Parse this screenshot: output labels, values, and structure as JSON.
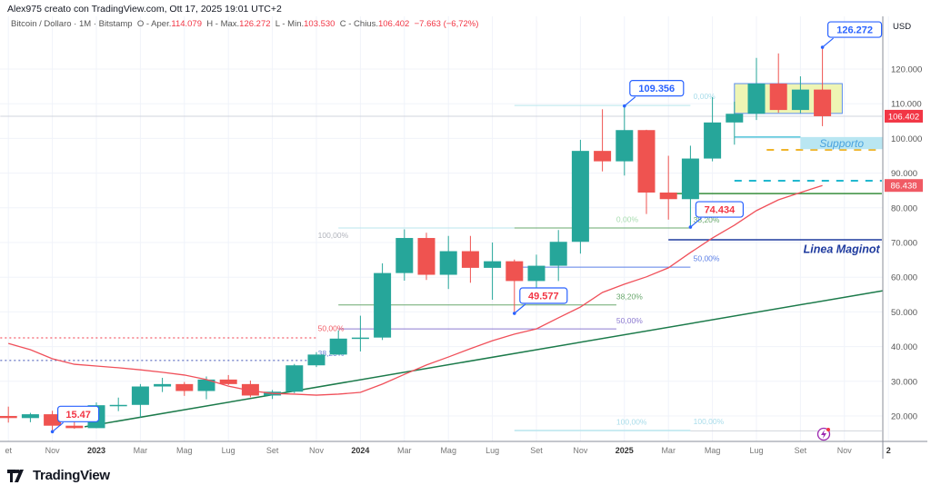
{
  "header": {
    "author_line": "Alex975 creato con TradingView.com, Ott 17, 2025 19:01 UTC+2",
    "symbol": "Bitcoin / Dollaro · 1M · Bitstamp",
    "open_label": "O - Aper.",
    "open": "114.079",
    "high_label": "H - Max.",
    "high": "126.272",
    "low_label": "L - Min.",
    "low": "103.530",
    "close_label": "C - Chius.",
    "close": "106.402",
    "change": "−7.663 (−6,72%)"
  },
  "footer": {
    "brand": "TradingView"
  },
  "colors": {
    "up": "#26a69a",
    "down": "#ef5350",
    "ma": "#f0505a",
    "trend": "#1b7a4a",
    "accent": "#2962ff"
  },
  "chart_data": {
    "type": "candlestick",
    "title": "",
    "currency": "USD",
    "ylim": [
      13000,
      133000
    ],
    "grid": true,
    "y_ticks": [
      "20.000",
      "30.000",
      "40.000",
      "50.000",
      "60.000",
      "70.000",
      "80.000",
      "90.000",
      "100.000",
      "110.000",
      "120.000"
    ],
    "y_tick_values": [
      20000,
      30000,
      40000,
      50000,
      60000,
      70000,
      80000,
      90000,
      100000,
      110000,
      120000
    ],
    "x_ticks": [
      {
        "date": "2022-09",
        "label": "et"
      },
      {
        "date": "2022-11",
        "label": "Nov"
      },
      {
        "date": "2023-01",
        "label": "2023"
      },
      {
        "date": "2023-03",
        "label": "Mar"
      },
      {
        "date": "2023-05",
        "label": "Mag"
      },
      {
        "date": "2023-07",
        "label": "Lug"
      },
      {
        "date": "2023-09",
        "label": "Set"
      },
      {
        "date": "2023-11",
        "label": "Nov"
      },
      {
        "date": "2024-01",
        "label": "2024"
      },
      {
        "date": "2024-03",
        "label": "Mar"
      },
      {
        "date": "2024-05",
        "label": "Mag"
      },
      {
        "date": "2024-07",
        "label": "Lug"
      },
      {
        "date": "2024-09",
        "label": "Set"
      },
      {
        "date": "2024-11",
        "label": "Nov"
      },
      {
        "date": "2025-01",
        "label": "2025"
      },
      {
        "date": "2025-03",
        "label": "Mar"
      },
      {
        "date": "2025-05",
        "label": "Mag"
      },
      {
        "date": "2025-07",
        "label": "Lug"
      },
      {
        "date": "2025-09",
        "label": "Set"
      },
      {
        "date": "2025-11",
        "label": "Nov"
      },
      {
        "date": "2026-01",
        "label": "2"
      }
    ],
    "candles_columns": [
      "date",
      "open",
      "high",
      "low",
      "close"
    ],
    "candles": [
      [
        "2022-09",
        20000,
        22700,
        18100,
        19400
      ],
      [
        "2022-10",
        19400,
        20900,
        18200,
        20500
      ],
      [
        "2022-11",
        20500,
        21500,
        15470,
        17200
      ],
      [
        "2022-12",
        17200,
        18400,
        16300,
        16500
      ],
      [
        "2023-01",
        16500,
        23900,
        16500,
        23100
      ],
      [
        "2023-02",
        23100,
        25300,
        21400,
        23200
      ],
      [
        "2023-03",
        23200,
        29200,
        19600,
        28500
      ],
      [
        "2023-04",
        28500,
        31000,
        26900,
        29200
      ],
      [
        "2023-05",
        29200,
        29800,
        25800,
        27200
      ],
      [
        "2023-06",
        27200,
        31400,
        24800,
        30500
      ],
      [
        "2023-07",
        30500,
        31800,
        28900,
        29200
      ],
      [
        "2023-08",
        29200,
        30200,
        25400,
        25900
      ],
      [
        "2023-09",
        25900,
        27500,
        24900,
        27000
      ],
      [
        "2023-10",
        27000,
        35000,
        26600,
        34600
      ],
      [
        "2023-11",
        34600,
        38400,
        34100,
        37700
      ],
      [
        "2023-12",
        37700,
        44700,
        37600,
        42300
      ],
      [
        "2024-01",
        42300,
        48900,
        38600,
        42600
      ],
      [
        "2024-02",
        42600,
        64000,
        41900,
        61200
      ],
      [
        "2024-03",
        61200,
        73800,
        59000,
        71300
      ],
      [
        "2024-04",
        71300,
        72800,
        59200,
        60700
      ],
      [
        "2024-05",
        60700,
        71900,
        56600,
        67500
      ],
      [
        "2024-06",
        67500,
        71900,
        58400,
        62700
      ],
      [
        "2024-07",
        62700,
        70000,
        53500,
        64600
      ],
      [
        "2024-08",
        64600,
        65100,
        49577,
        58900
      ],
      [
        "2024-09",
        58900,
        66500,
        52600,
        63300
      ],
      [
        "2024-10",
        63300,
        73600,
        58900,
        70200
      ],
      [
        "2024-11",
        70200,
        99600,
        66800,
        96400
      ],
      [
        "2024-12",
        96400,
        108400,
        90500,
        93400
      ],
      [
        "2025-01",
        93400,
        109356,
        89300,
        102400
      ],
      [
        "2025-02",
        102400,
        102500,
        78200,
        84400
      ],
      [
        "2025-03",
        84400,
        95000,
        76600,
        82500
      ],
      [
        "2025-04",
        82500,
        97900,
        74434,
        94200
      ],
      [
        "2025-05",
        94200,
        111900,
        93400,
        104600
      ],
      [
        "2025-06",
        104600,
        110600,
        98200,
        107100
      ],
      [
        "2025-07",
        107100,
        123200,
        105300,
        115800
      ],
      [
        "2025-08",
        115800,
        124500,
        107400,
        108200
      ],
      [
        "2025-09",
        108200,
        117900,
        107300,
        114079
      ],
      [
        "2025-10",
        114079,
        126272,
        103530,
        106402
      ]
    ],
    "moving_average": {
      "values": [
        40900,
        39100,
        36500,
        34900,
        34400,
        33900,
        33300,
        32600,
        31800,
        30500,
        28600,
        27300,
        26500,
        26300,
        26000,
        26300,
        26800,
        29200,
        32000,
        34700,
        37000,
        39400,
        41700,
        43600,
        45100,
        48300,
        51400,
        55600,
        58000,
        60100,
        62700,
        67100,
        71300,
        75000,
        79200,
        82300,
        84400,
        86438
      ]
    },
    "trendline": {
      "from": [
        "2022-12-15",
        16900
      ],
      "to": [
        "2025-12-22",
        56100
      ]
    },
    "price_labels": [
      {
        "text": "106.402",
        "price": 106402,
        "color": "#f23645"
      },
      {
        "text": "86.438",
        "price": 86438,
        "color": "#f05a64"
      }
    ],
    "hlines": [
      {
        "price": 106402,
        "from": "2022-08-20",
        "to": "2025-12-22",
        "color": "#d1d4dc",
        "width": 1,
        "dash": ""
      },
      {
        "price": 42500,
        "from": "2022-08-20",
        "to": "2023-11-01",
        "color": "#f23645",
        "width": 1,
        "dash": "2,3"
      },
      {
        "price": 36000,
        "from": "2022-08-20",
        "to": "2023-11-01",
        "color": "#3f51b5",
        "width": 1,
        "dash": "2,3"
      },
      {
        "price": 52000,
        "from": "2023-12-01",
        "to": "2024-12-20",
        "color": "#6aa86e",
        "width": 1,
        "dash": ""
      },
      {
        "price": 45100,
        "from": "2023-12-01",
        "to": "2024-12-20",
        "color": "#8c7ad0",
        "width": 1,
        "dash": ""
      },
      {
        "price": 74200,
        "from": "2023-12-01",
        "to": "2024-08-01",
        "color": "#b9e6ee",
        "width": 1,
        "dash": ""
      },
      {
        "price": 74200,
        "from": "2024-08-01",
        "to": "2025-04-01",
        "color": "#6aa86e",
        "width": 1,
        "dash": ""
      },
      {
        "price": 62900,
        "from": "2024-08-01",
        "to": "2025-04-01",
        "color": "#5b7fe6",
        "width": 1,
        "dash": ""
      },
      {
        "price": 109500,
        "from": "2024-08-01",
        "to": "2025-04-01",
        "color": "#b9e6ee",
        "width": 1,
        "dash": ""
      },
      {
        "price": 15800,
        "from": "2024-08-01",
        "to": "2025-04-01",
        "color": "#b9e6ee",
        "width": 1.5,
        "dash": ""
      },
      {
        "price": 15700,
        "from": "2025-04-01",
        "to": "2025-12-22",
        "color": "#d1d4dc",
        "width": 1,
        "dash": ""
      },
      {
        "price": 84100,
        "from": "2025-03-01",
        "to": "2025-12-22",
        "color": "#388e3c",
        "width": 1.5,
        "dash": ""
      },
      {
        "price": 70800,
        "from": "2025-03-01",
        "to": "2025-12-22",
        "color": "#1e3a9e",
        "width": 1.5,
        "dash": ""
      },
      {
        "price": 87800,
        "from": "2025-06-01",
        "to": "2025-12-22",
        "color": "#22b8cf",
        "width": 2,
        "dash": "8,8"
      },
      {
        "price": 96700,
        "from": "2025-07-15",
        "to": "2025-12-22",
        "color": "#f0b429",
        "width": 2,
        "dash": "8,8"
      },
      {
        "price": 100400,
        "from": "2025-06-01",
        "to": "2025-09-01",
        "color": "#4fc3d8",
        "width": 1.5,
        "dash": ""
      }
    ],
    "fib_labels": [
      {
        "text": "100,00%",
        "date": "2023-11-03",
        "price": 71300,
        "color": "#b0b3bb"
      },
      {
        "text": "50,00%",
        "date": "2023-11-03",
        "price": 44500,
        "color": "#f05a64"
      },
      {
        "text": "38,20%",
        "date": "2023-11-03",
        "price": 37300,
        "color": "#6b7fd6"
      },
      {
        "text": "0,00%",
        "date": "2024-12-20",
        "price": 75900,
        "color": "#a8dcb0"
      },
      {
        "text": "38,20%",
        "date": "2024-12-20",
        "price": 53600,
        "color": "#6aa86e"
      },
      {
        "text": "50,00%",
        "date": "2024-12-20",
        "price": 46700,
        "color": "#8c7ad0"
      },
      {
        "text": "100,00%",
        "date": "2024-12-20",
        "price": 17500,
        "color": "#a8dcea"
      },
      {
        "text": "0,00%",
        "date": "2025-04-05",
        "price": 111400,
        "color": "#a8dcea"
      },
      {
        "text": "38,20%",
        "date": "2025-04-05",
        "price": 75800,
        "color": "#6aa86e"
      },
      {
        "text": "50,00%",
        "date": "2025-04-05",
        "price": 64600,
        "color": "#5b7fe6"
      },
      {
        "text": "100,00%",
        "date": "2025-04-05",
        "price": 17600,
        "color": "#a8dcea"
      }
    ],
    "rectangle": {
      "from": "2025-06-01",
      "to": "2025-10-28",
      "top": 115800,
      "bottom": 107200,
      "fill": "#eef5b4",
      "stroke": "#5b8def"
    },
    "support_box": {
      "text": "Supporto",
      "from": "2025-09-01",
      "to": "2025-12-22",
      "top": 100400,
      "bottom": 96900,
      "fill": "#b9e6f2",
      "color": "#4aa3df"
    },
    "maginot_label": {
      "text": "Linea Maginot",
      "date": "2025-09-05",
      "price": 68000,
      "color": "#1e3a9e"
    },
    "callouts": [
      {
        "text": "126.272",
        "date": "2025-10",
        "price": 126272,
        "color": "#2962ff",
        "text_color": "#2962ff"
      },
      {
        "text": "109.356",
        "date": "2025-01",
        "price": 109356,
        "color": "#2962ff",
        "text_color": "#2962ff"
      },
      {
        "text": "74.434",
        "date": "2025-04",
        "price": 74434,
        "color": "#2962ff",
        "text_color": "#f23645"
      },
      {
        "text": "49.577",
        "date": "2024-08",
        "price": 49577,
        "color": "#2962ff",
        "text_color": "#f23645"
      },
      {
        "text": "15.47",
        "date": "2022-11",
        "price": 15470,
        "color": "#2962ff",
        "text_color": "#f23645"
      }
    ]
  }
}
